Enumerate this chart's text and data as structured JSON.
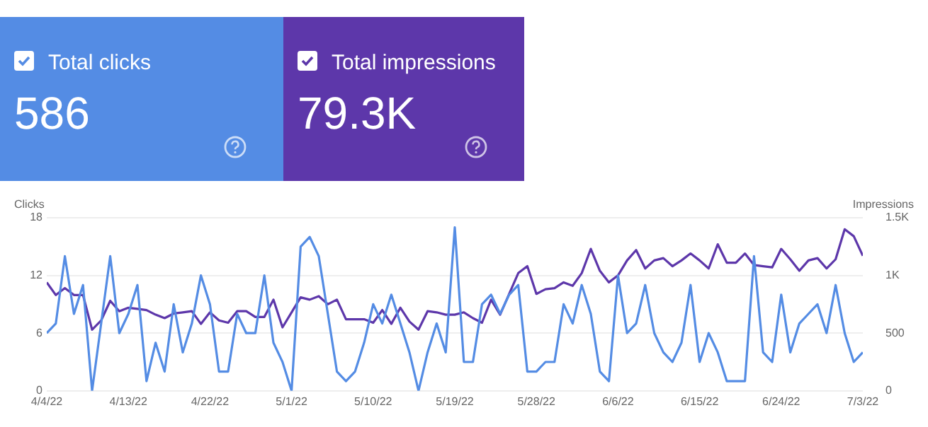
{
  "chart_data": {
    "type": "line",
    "annotations": [
      "586",
      "79.3K"
    ],
    "ylabel": "Clicks",
    "y2label": "Impressions",
    "x": [
      "--04-04",
      "--04-05",
      "--04-06",
      "--04-07",
      "--04-08",
      "--04-09",
      "--04-10",
      "--04-11",
      "--04-12",
      "--04-13",
      "--04-14",
      "--04-15",
      "--04-16",
      "--04-17",
      "--04-18",
      "--04-19",
      "--04-20",
      "--04-21",
      "--04-22",
      "--04-23",
      "--04-24",
      "--04-25",
      "--04-26",
      "--04-27",
      "--04-28",
      "--04-29",
      "--04-30",
      "--05-01",
      "--05-02",
      "--05-03",
      "--05-04",
      "--05-05",
      "--05-06",
      "--05-07",
      "--05-08",
      "--05-09",
      "--05-10",
      "--05-11",
      "--05-12",
      "--05-13",
      "--05-14",
      "--05-15",
      "--05-16",
      "--05-17",
      "--05-18",
      "--05-19",
      "--05-20",
      "--05-21",
      "--05-22",
      "--05-23",
      "--05-24",
      "--05-25",
      "--05-26",
      "--05-27",
      "--05-28",
      "--05-29",
      "--05-30",
      "--05-31",
      "--06-01",
      "--06-02",
      "--06-03",
      "--06-04",
      "--06-05",
      "--06-06",
      "--06-07",
      "--06-08",
      "--06-09",
      "--06-10",
      "--06-11",
      "--06-12",
      "--06-13",
      "--06-14",
      "--06-15",
      "--06-16",
      "--06-17",
      "--06-18",
      "--06-19",
      "--06-20",
      "--06-21",
      "--06-22",
      "--06-23",
      "--06-24",
      "--06-25",
      "--06-26",
      "--06-27",
      "--06-28",
      "--06-29",
      "--06-30",
      "--07-01",
      "--07-02",
      "--07-03"
    ],
    "series": [
      {
        "name": "Total clicks",
        "color": "#548ce4",
        "values": [
          6,
          7,
          14,
          8,
          11,
          0,
          7,
          14,
          6,
          8,
          11,
          1,
          5,
          2,
          9,
          4,
          7,
          12,
          9,
          2,
          2,
          8,
          6,
          6,
          12,
          5,
          3,
          0,
          15,
          16,
          14,
          8,
          2,
          1,
          2,
          5,
          9,
          7,
          10,
          7,
          4,
          0,
          4,
          7,
          4,
          17,
          3,
          3,
          9,
          10,
          8,
          10,
          11,
          2,
          2,
          3,
          3,
          9,
          7,
          11,
          8,
          2,
          1,
          12,
          6,
          7,
          11,
          6,
          4,
          3,
          5,
          11,
          3,
          6,
          4,
          1,
          1,
          1,
          14,
          4,
          3,
          10,
          4,
          7,
          8,
          9,
          6,
          11,
          6,
          3,
          4
        ]
      },
      {
        "name": "Total impressions",
        "color": "#5d37aa",
        "axis": "y2",
        "values": [
          940,
          830,
          890,
          830,
          830,
          530,
          610,
          780,
          690,
          720,
          710,
          700,
          660,
          630,
          670,
          680,
          690,
          580,
          680,
          610,
          590,
          690,
          690,
          640,
          640,
          790,
          550,
          680,
          810,
          790,
          820,
          750,
          790,
          620,
          620,
          620,
          590,
          700,
          580,
          720,
          600,
          530,
          690,
          680,
          660,
          660,
          680,
          630,
          590,
          790,
          660,
          840,
          1020,
          1080,
          840,
          880,
          890,
          940,
          910,
          1020,
          1230,
          1040,
          940,
          1000,
          1130,
          1220,
          1060,
          1130,
          1150,
          1080,
          1130,
          1190,
          1130,
          1060,
          1270,
          1110,
          1110,
          1190,
          1090,
          1080,
          1070,
          1230,
          1140,
          1040,
          1130,
          1150,
          1060,
          1140,
          1400,
          1340,
          1170
        ]
      }
    ],
    "xlim": [
      "--04-04",
      "--07-03"
    ],
    "xticks": [
      {
        "value": "--04-04",
        "label": "4/4/22"
      },
      {
        "value": "--04-13",
        "label": "4/13/22"
      },
      {
        "value": "--04-22",
        "label": "4/22/22"
      },
      {
        "value": "--05-01",
        "label": "5/1/22"
      },
      {
        "value": "--05-10",
        "label": "5/10/22"
      },
      {
        "value": "--05-19",
        "label": "5/19/22"
      },
      {
        "value": "--05-28",
        "label": "5/28/22"
      },
      {
        "value": "--06-06",
        "label": "6/6/22"
      },
      {
        "value": "--06-15",
        "label": "6/15/22"
      },
      {
        "value": "--06-24",
        "label": "6/24/22"
      },
      {
        "value": "--07-03",
        "label": "7/3/22"
      }
    ],
    "ylim": [
      0,
      18
    ],
    "yticks": [
      0,
      6,
      12,
      18
    ],
    "y2lim": [
      0,
      1500
    ],
    "y2ticks": [
      0,
      500,
      {
        "value": 1000,
        "label": "1K"
      },
      {
        "value": 1500,
        "label": "1.5K"
      }
    ],
    "grid": "y",
    "marker": "none",
    "line_style": "solid",
    "legend": "top left"
  }
}
